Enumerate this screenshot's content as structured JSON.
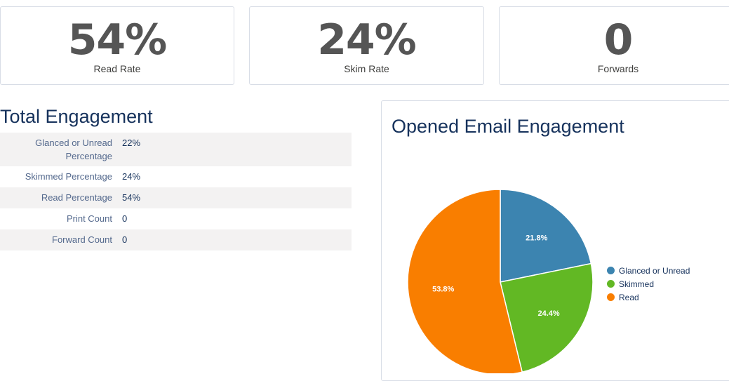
{
  "stats": [
    {
      "value": "54%",
      "label": "Read Rate"
    },
    {
      "value": "24%",
      "label": "Skim Rate"
    },
    {
      "value": "0",
      "label": "Forwards"
    }
  ],
  "total_engagement": {
    "title": "Total Engagement",
    "rows": [
      {
        "label": "Glanced or Unread Percentage",
        "value": "22%"
      },
      {
        "label": "Skimmed Percentage",
        "value": "24%"
      },
      {
        "label": "Read Percentage",
        "value": "54%"
      },
      {
        "label": "Print Count",
        "value": "0"
      },
      {
        "label": "Forward Count",
        "value": "0"
      }
    ]
  },
  "chart": {
    "title": "Opened Email Engagement"
  },
  "chart_data": {
    "type": "pie",
    "title": "Opened Email Engagement",
    "categories": [
      "Glanced or Unread",
      "Skimmed",
      "Read"
    ],
    "values": [
      21.8,
      24.4,
      53.8
    ],
    "data_labels": [
      "21.8%",
      "24.4%",
      "53.8%"
    ],
    "colors": [
      "#3c84b0",
      "#62b824",
      "#f97e00"
    ],
    "legend_position": "right"
  }
}
